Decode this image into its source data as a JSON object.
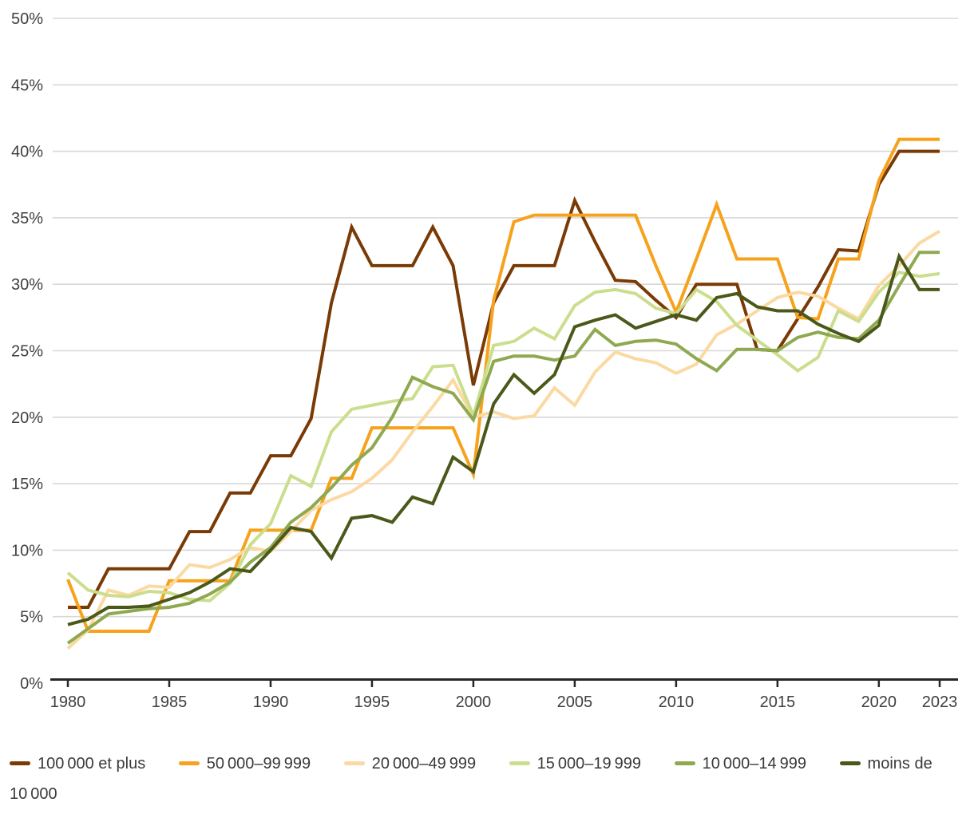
{
  "chart_data": {
    "type": "line",
    "x": [
      1980,
      1981,
      1982,
      1983,
      1984,
      1985,
      1986,
      1987,
      1988,
      1989,
      1990,
      1991,
      1992,
      1993,
      1994,
      1995,
      1996,
      1997,
      1998,
      1999,
      2000,
      2001,
      2002,
      2003,
      2004,
      2005,
      2006,
      2007,
      2008,
      2009,
      2010,
      2011,
      2012,
      2013,
      2014,
      2015,
      2016,
      2017,
      2018,
      2019,
      2020,
      2021,
      2022,
      2023
    ],
    "x_tick_years": [
      1980,
      1985,
      1990,
      1995,
      2000,
      2005,
      2010,
      2015,
      2020,
      2023
    ],
    "x_tick_labels": [
      "1980",
      "1985",
      "1990",
      "1995",
      "2000",
      "2005",
      "2010",
      "2015",
      "2020",
      "2023"
    ],
    "ylim": [
      0,
      50
    ],
    "y_ticks": [
      0,
      5,
      10,
      15,
      20,
      25,
      30,
      35,
      40,
      45,
      50
    ],
    "y_tick_labels": [
      "0%",
      "5%",
      "10%",
      "15%",
      "20%",
      "25%",
      "30%",
      "35%",
      "40%",
      "45%",
      "50%"
    ],
    "grid": true,
    "legend_position": "bottom",
    "series": [
      {
        "name": "100 000 et plus",
        "color": "#7a3a05",
        "values": [
          5.7,
          5.7,
          8.6,
          8.6,
          8.6,
          8.6,
          11.4,
          11.4,
          14.3,
          14.3,
          17.1,
          17.1,
          19.9,
          28.6,
          34.3,
          31.4,
          31.4,
          31.4,
          34.3,
          31.4,
          22.4,
          28.6,
          31.4,
          31.4,
          31.4,
          36.3,
          33.2,
          30.3,
          30.2,
          28.8,
          27.5,
          30.0,
          30.0,
          30.0,
          25.1,
          25.0,
          27.4,
          29.8,
          32.6,
          32.5,
          37.5,
          40.0,
          40.0,
          40.0
        ]
      },
      {
        "name": "50 000–99 999",
        "color": "#f6a21c",
        "values": [
          7.8,
          3.9,
          3.9,
          3.9,
          3.9,
          7.7,
          7.7,
          7.7,
          7.7,
          11.5,
          11.5,
          11.5,
          11.5,
          15.4,
          15.4,
          19.2,
          19.2,
          19.2,
          19.2,
          19.2,
          15.7,
          28.8,
          34.7,
          35.2,
          35.2,
          35.2,
          35.2,
          35.2,
          35.2,
          31.4,
          27.9,
          31.9,
          36.0,
          31.9,
          31.9,
          31.9,
          27.5,
          27.4,
          31.9,
          31.9,
          37.8,
          40.9,
          40.9,
          40.9
        ]
      },
      {
        "name": "20 000–49 999",
        "color": "#fbd9a3",
        "values": [
          2.6,
          4.0,
          7.0,
          6.6,
          7.3,
          7.2,
          8.9,
          8.7,
          9.3,
          10.2,
          9.9,
          11.4,
          13.0,
          13.8,
          14.4,
          15.4,
          16.8,
          18.9,
          20.8,
          22.8,
          20.0,
          20.4,
          19.9,
          20.1,
          22.2,
          20.9,
          23.4,
          24.9,
          24.4,
          24.1,
          23.3,
          24.0,
          26.2,
          27.0,
          28.0,
          29.0,
          29.4,
          29.1,
          28.2,
          27.4,
          29.9,
          31.4,
          33.1,
          34.0
        ]
      },
      {
        "name": "15 000–19 999",
        "color": "#cbde8d",
        "values": [
          8.3,
          7.0,
          6.6,
          6.5,
          6.9,
          6.8,
          6.3,
          6.2,
          7.5,
          10.4,
          12.0,
          15.6,
          14.8,
          18.9,
          20.6,
          20.9,
          21.2,
          21.4,
          23.8,
          23.9,
          20.1,
          25.4,
          25.7,
          26.7,
          25.9,
          28.4,
          29.4,
          29.6,
          29.3,
          28.2,
          27.8,
          29.6,
          28.7,
          26.9,
          25.8,
          24.7,
          23.5,
          24.5,
          28.0,
          27.2,
          29.4,
          30.9,
          30.6,
          30.8
        ]
      },
      {
        "name": "10 000–14 999",
        "color": "#8fa951",
        "values": [
          3.0,
          4.1,
          5.2,
          5.4,
          5.6,
          5.7,
          6.0,
          6.7,
          7.6,
          9.1,
          10.2,
          12.1,
          13.2,
          14.7,
          16.4,
          17.7,
          20.0,
          23.0,
          22.3,
          21.8,
          19.8,
          24.2,
          24.6,
          24.6,
          24.3,
          24.6,
          26.6,
          25.4,
          25.7,
          25.8,
          25.5,
          24.4,
          23.5,
          25.1,
          25.1,
          25.0,
          26.0,
          26.4,
          26.0,
          25.9,
          27.3,
          29.9,
          32.4,
          32.4
        ]
      },
      {
        "name": "moins de 10 000",
        "color": "#4a591a",
        "values": [
          4.4,
          4.8,
          5.7,
          5.7,
          5.8,
          6.3,
          6.8,
          7.6,
          8.6,
          8.4,
          10.0,
          11.7,
          11.4,
          9.4,
          12.4,
          12.6,
          12.1,
          14.0,
          13.5,
          17.0,
          15.9,
          21.0,
          23.2,
          21.8,
          23.2,
          26.8,
          27.3,
          27.7,
          26.7,
          27.2,
          27.7,
          27.3,
          29.0,
          29.3,
          28.3,
          28.0,
          28.0,
          27.0,
          26.3,
          25.7,
          26.9,
          32.1,
          29.6,
          29.6
        ]
      }
    ],
    "colors": {
      "grid": "#d8d8d8",
      "axis": "#262626",
      "tick_text": "#3f3f3f",
      "legend_text": "#3a3a3a",
      "background": "#ffffff"
    }
  }
}
